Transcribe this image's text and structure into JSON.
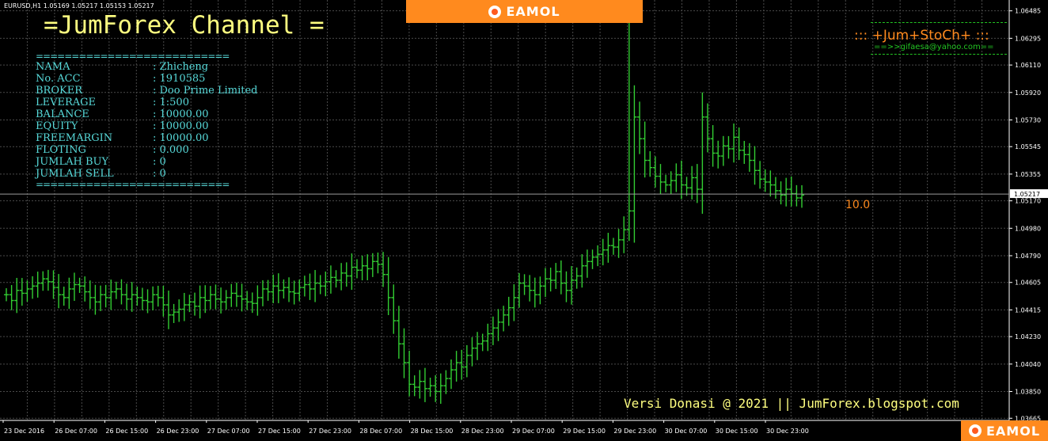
{
  "window": {
    "symbol_title": "EURUSD,H1  1.05169 1.05217 1.05153 1.05217"
  },
  "channel": {
    "title": "=JumForex Channel  ="
  },
  "account_panel": {
    "separator": "===========================",
    "rows": [
      {
        "label": "NAMA",
        "value": ": Zhicheng"
      },
      {
        "label": "No. ACC",
        "value": ": 1910585"
      },
      {
        "label": "BROKER",
        "value": ": Doo Prime Limited"
      },
      {
        "label": "LEVERAGE",
        "value": ": 1:500"
      },
      {
        "label": "BALANCE",
        "value": ": 10000.00"
      },
      {
        "label": "EQUITY",
        "value": ": 10000.00"
      },
      {
        "label": "FREEMARGIN",
        "value": ": 10000.00"
      },
      {
        "label": "FLOTING",
        "value": ": 0.000"
      },
      {
        "label": "JUMLAH BUY",
        "value": ": 0"
      },
      {
        "label": "JUMLAH SELL",
        "value": ": 0"
      }
    ]
  },
  "branding": {
    "top_logo": "EAMOL",
    "bottom_logo": "EAMOL"
  },
  "indicator": {
    "title": "::: +Jum+StoCh+ :::",
    "email": "==>>gifaesa@yahoo.com=="
  },
  "spread_label": "10.0",
  "footer": {
    "text": "Versi Donasi @ 2021 || JumForex.blogspot.com"
  },
  "colors": {
    "background": "#000000",
    "candle": "#32cd32",
    "grid": "#4a4a4a",
    "axis_text": "#ffffff",
    "accent_orange": "#ff8a1e",
    "panel_text": "#57d9d9",
    "title_yellow": "#ffff80"
  },
  "chart_data": {
    "type": "bar",
    "symbol": "EURUSD",
    "timeframe": "H1",
    "current_price": "1.05217",
    "y_ticks": [
      "1.06485",
      "1.06295",
      "1.06110",
      "1.05920",
      "1.05730",
      "1.05545",
      "1.05355",
      "1.05170",
      "1.04980",
      "1.04790",
      "1.04605",
      "1.04415",
      "1.04230",
      "1.04040",
      "1.03850",
      "1.03665"
    ],
    "ylim": [
      1.0365,
      1.0656
    ],
    "x_ticks": [
      "23 Dec 2016",
      "26 Dec 07:00",
      "26 Dec 15:00",
      "26 Dec 23:00",
      "27 Dec 07:00",
      "27 Dec 15:00",
      "27 Dec 23:00",
      "28 Dec 07:00",
      "28 Dec 15:00",
      "28 Dec 23:00",
      "29 Dec 07:00",
      "29 Dec 15:00",
      "29 Dec 23:00",
      "30 Dec 07:00",
      "30 Dec 15:00",
      "30 Dec 23:00"
    ],
    "close": [
      1.0452,
      1.0448,
      1.0455,
      1.0453,
      1.0456,
      1.0458,
      1.046,
      1.0463,
      1.0461,
      1.0457,
      1.0452,
      1.045,
      1.0456,
      1.0459,
      1.0458,
      1.0454,
      1.045,
      1.0447,
      1.0452,
      1.045,
      1.0454,
      1.0456,
      1.0452,
      1.0449,
      1.0452,
      1.045,
      1.0448,
      1.0447,
      1.0452,
      1.045,
      1.0445,
      1.0438,
      1.044,
      1.0442,
      1.0445,
      1.0447,
      1.0444,
      1.045,
      1.0448,
      1.0452,
      1.0449,
      1.0447,
      1.045,
      1.0453,
      1.0451,
      1.0449,
      1.0447,
      1.0446,
      1.045,
      1.0456,
      1.0454,
      1.0458,
      1.0455,
      1.0457,
      1.0454,
      1.0453,
      1.0457,
      1.0459,
      1.0456,
      1.046,
      1.0458,
      1.0461,
      1.0464,
      1.0462,
      1.0467,
      1.0465,
      1.0471,
      1.0469,
      1.0472,
      1.047,
      1.0475,
      1.0473,
      1.0466,
      1.045,
      1.0434,
      1.0418,
      1.0405,
      1.039,
      1.0388,
      1.0392,
      1.0387,
      1.0389,
      1.0385,
      1.0389,
      1.0394,
      1.04,
      1.0405,
      1.0402,
      1.041,
      1.0415,
      1.0418,
      1.042,
      1.0425,
      1.0429,
      1.0433,
      1.0438,
      1.0443,
      1.045,
      1.046,
      1.0458,
      1.0455,
      1.0452,
      1.0458,
      1.0463,
      1.0462,
      1.0468,
      1.046,
      1.0455,
      1.0462,
      1.0465,
      1.0472,
      1.0475,
      1.0478,
      1.048,
      1.0483,
      1.0486,
      1.0485,
      1.049,
      1.0497,
      1.051,
      1.0575,
      1.056,
      1.0545,
      1.054,
      1.0534,
      1.053,
      1.0528,
      1.0531,
      1.0535,
      1.0528,
      1.0526,
      1.0533,
      1.0525,
      1.0575,
      1.056,
      1.055,
      1.0548,
      1.0555,
      1.0553,
      1.0561,
      1.0552,
      1.0549,
      1.0545,
      1.0538,
      1.0532,
      1.053,
      1.0528,
      1.0524,
      1.0521,
      1.0525,
      1.0522,
      1.0519,
      1.0521
    ]
  }
}
